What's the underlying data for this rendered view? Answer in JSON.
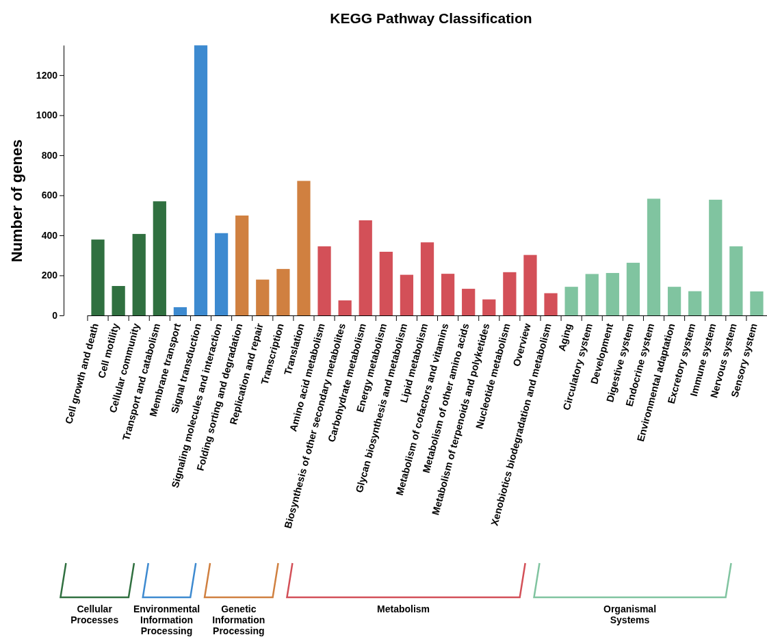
{
  "chart_data": {
    "type": "bar",
    "title": "KEGG Pathway Classification",
    "ylabel": "Number of genes",
    "categories": [
      "Cell growth and death",
      "Cell motility",
      "Cellular community",
      "Transport and catabolism",
      "Membrane transport",
      "Signal transduction",
      "Signaling molecules and interaction",
      "Folding sorting and degradation",
      "Replication and repair",
      "Transcription",
      "Translation",
      "Amino acid metabolism",
      "Biosynthesis of other secondary metabolites",
      "Carbohydrate metabolism",
      "Energy metabolism",
      "Glycan biosynthesis and metabolism",
      "Lipid metabolism",
      "Metabolism of cofactors and vitamins",
      "Metabolism of other amino acids",
      "Metabolism of terpenoids and polyketides",
      "Nucleotide metabolism",
      "Overview",
      "Xenobiotics biodegradation and metabolism",
      "Aging",
      "Circulatory system",
      "Development",
      "Digestive system",
      "Endocrine system",
      "Environmental adaptation",
      "Excretory system",
      "Immune system",
      "Nervous system",
      "Sensory system"
    ],
    "values": [
      379,
      147,
      407,
      570,
      41,
      1349,
      411,
      499,
      179,
      232,
      672,
      345,
      75,
      475,
      318,
      203,
      365,
      208,
      133,
      80,
      216,
      302,
      111,
      143,
      207,
      212,
      263,
      583,
      143,
      121,
      578,
      345,
      120
    ],
    "colors": [
      "#307040",
      "#307040",
      "#307040",
      "#307040",
      "#3d8ad0",
      "#3d8ad0",
      "#3d8ad0",
      "#d08040",
      "#d08040",
      "#d08040",
      "#d08040",
      "#d35058",
      "#d35058",
      "#d35058",
      "#d35058",
      "#d35058",
      "#d35058",
      "#d35058",
      "#d35058",
      "#d35058",
      "#d35058",
      "#d35058",
      "#d35058",
      "#80c4a0",
      "#80c4a0",
      "#80c4a0",
      "#80c4a0",
      "#80c4a0",
      "#80c4a0",
      "#80c4a0",
      "#80c4a0",
      "#80c4a0",
      "#80c4a0"
    ],
    "annotations": [
      "Cellular\nProcesses",
      "Environmental\nInformation\nProcessing",
      "Genetic\nInformation\nProcessing",
      "Metabolism",
      "Organismal\nSystems"
    ],
    "ylim": [
      0,
      1350
    ],
    "yticks": [
      0,
      200,
      400,
      600,
      800,
      1000,
      1200
    ],
    "grid": false
  }
}
